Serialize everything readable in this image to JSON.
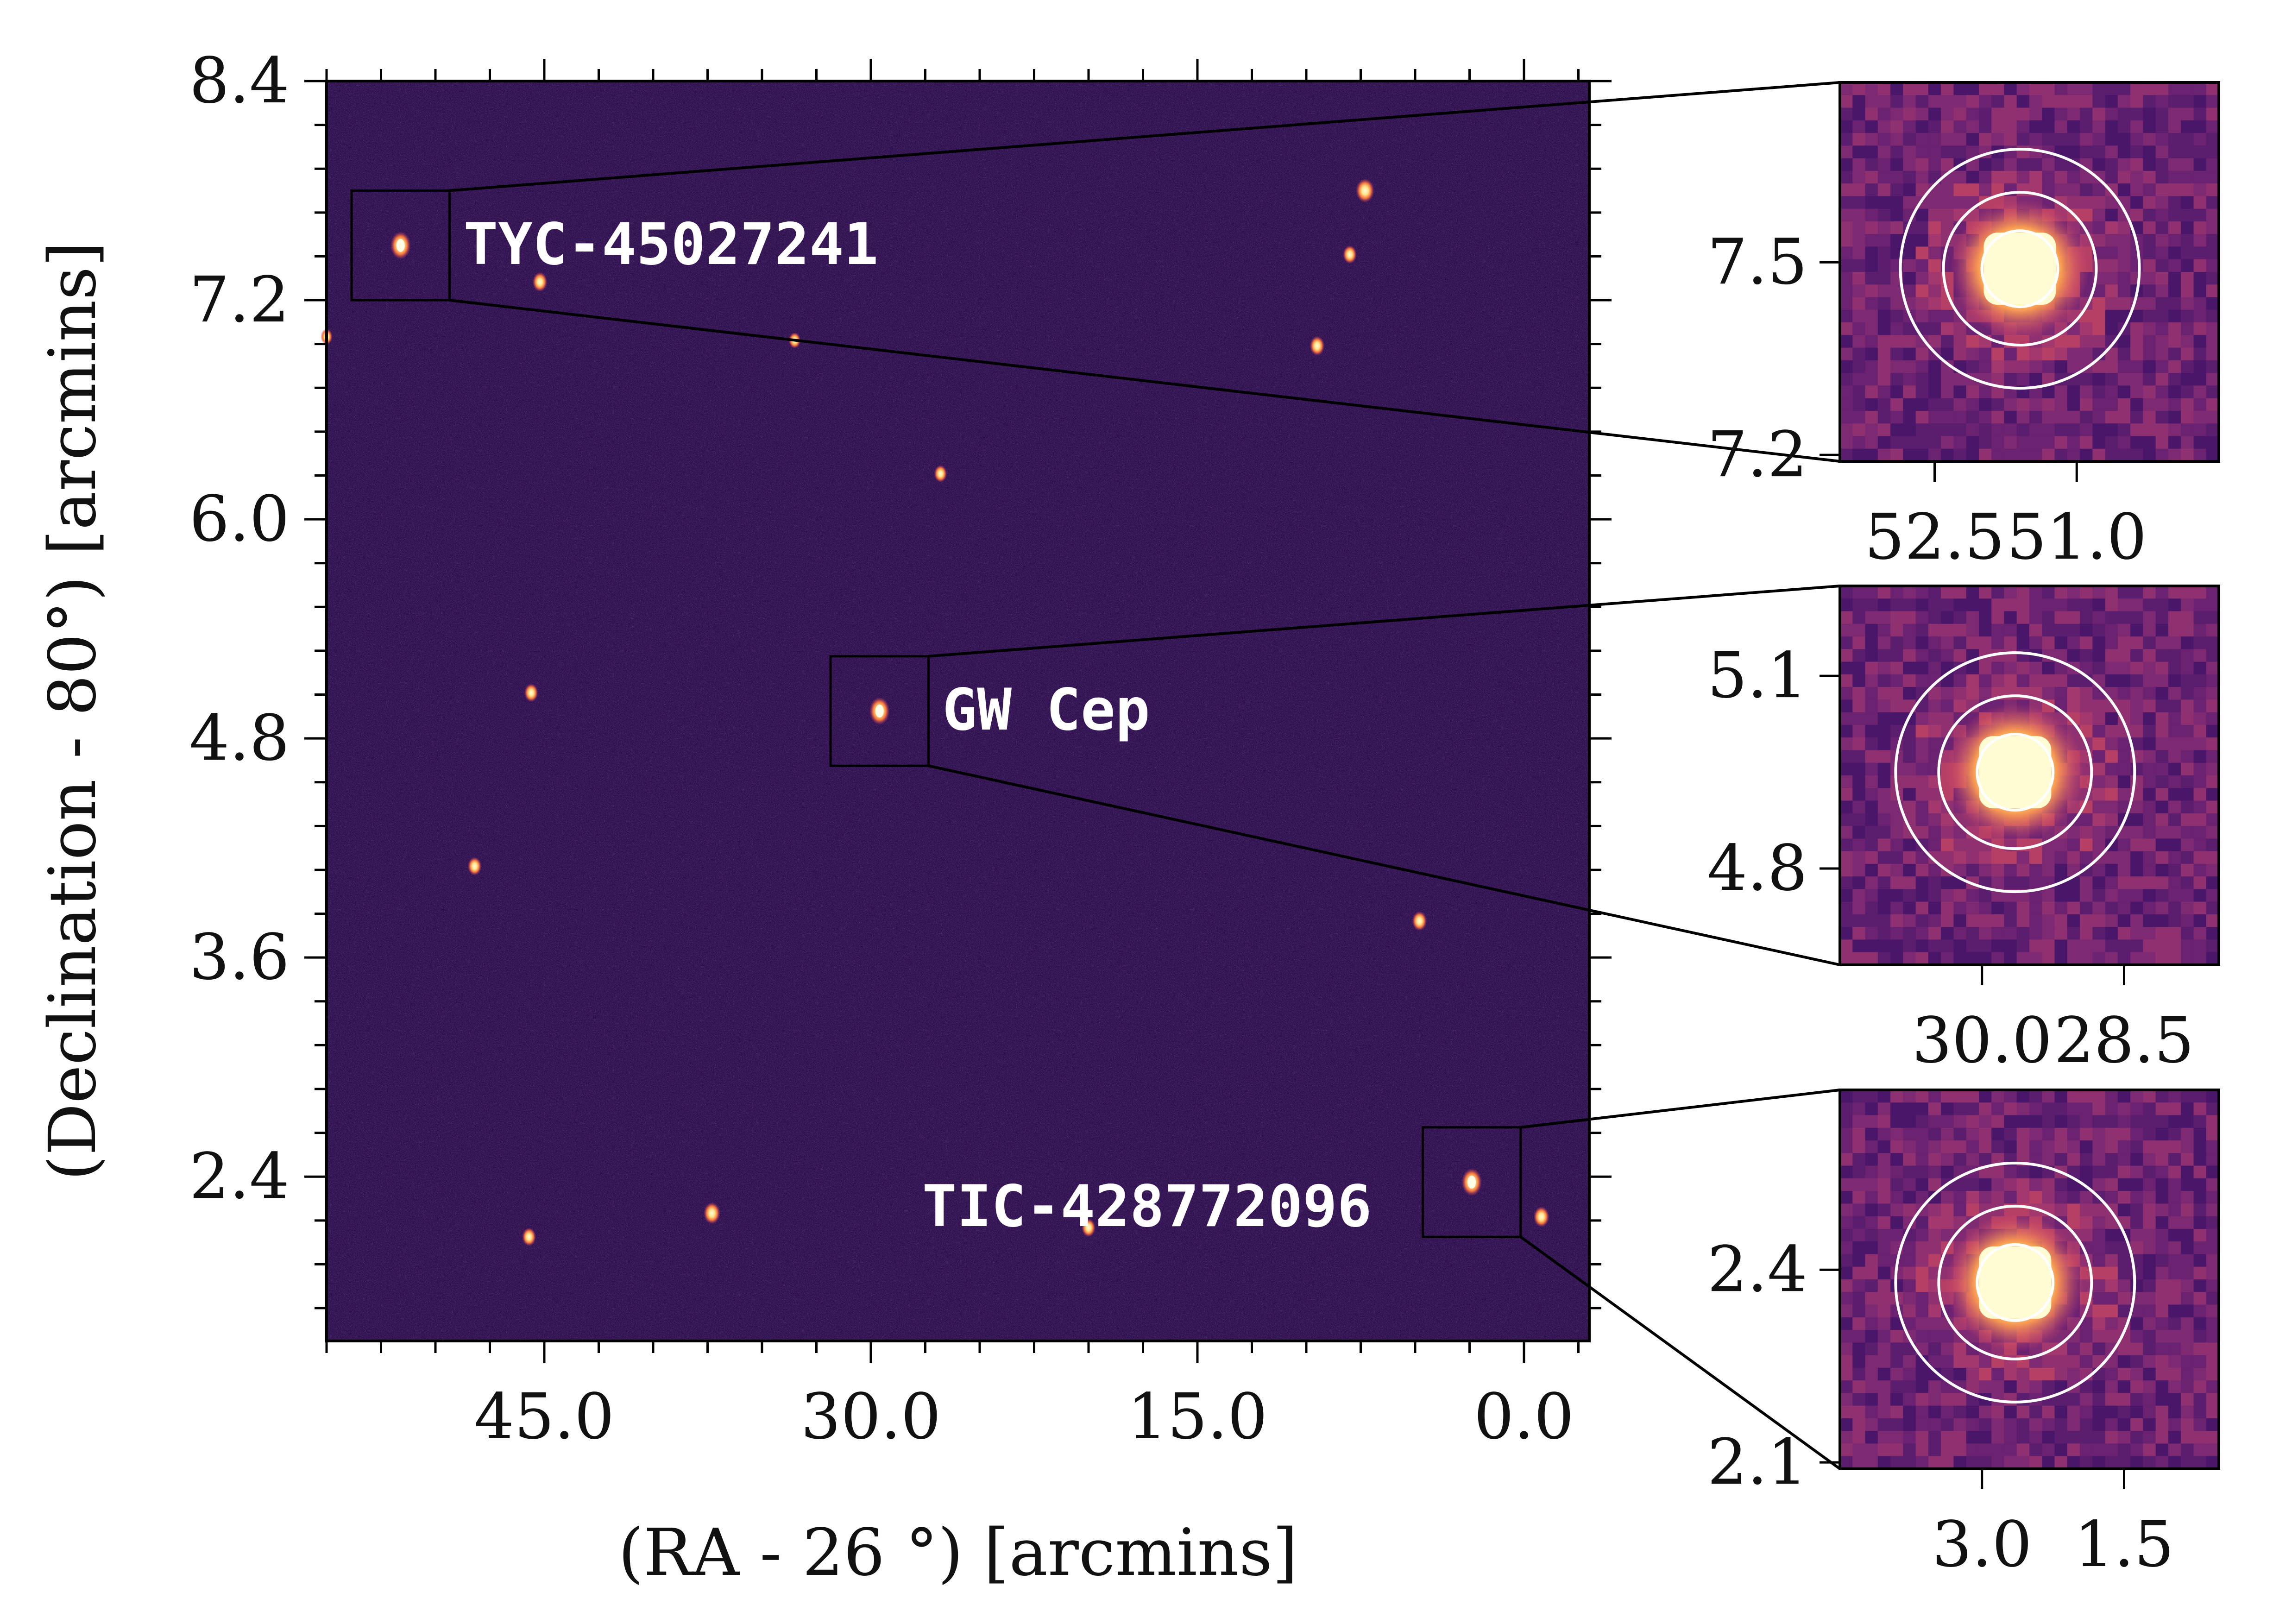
{
  "chart_data": [
    {
      "type": "scatter",
      "panel": "main-field",
      "xlabel": "(RA - 26 °) [arcmins]",
      "ylabel": "(Declination - 80°) [arcmins]",
      "xlim": [
        55,
        -3
      ],
      "ylim": [
        1.5,
        8.4
      ],
      "xticks": [
        45.0,
        30.0,
        15.0,
        0.0
      ],
      "xtick_labels": [
        "45.0",
        "30.0",
        "15.0",
        "0.0"
      ],
      "yticks": [
        8.4,
        7.2,
        6.0,
        4.8,
        3.6,
        2.4
      ],
      "ytick_labels": [
        "8.4",
        "7.2",
        "6.0",
        "4.8",
        "3.6",
        "2.4"
      ],
      "colormap": "magma",
      "background_color": "#2a0f4a",
      "grid": false,
      "targets": [
        {
          "name": "TYC-45027241",
          "x": 51.6,
          "y": 7.5
        },
        {
          "name": "GW Cep",
          "x": 29.6,
          "y": 4.95
        },
        {
          "name": "TIC-428772096",
          "x": 2.4,
          "y": 2.37
        }
      ],
      "sources": [
        {
          "x": 7.3,
          "y": 7.8,
          "bright": 1.0
        },
        {
          "x": 8.0,
          "y": 7.45,
          "bright": 0.5
        },
        {
          "x": 45.2,
          "y": 7.3,
          "bright": 0.6
        },
        {
          "x": 9.5,
          "y": 6.95,
          "bright": 0.6
        },
        {
          "x": 33.5,
          "y": 6.98,
          "bright": 0.3
        },
        {
          "x": 26.8,
          "y": 6.25,
          "bright": 0.4
        },
        {
          "x": 45.6,
          "y": 5.05,
          "bright": 0.5
        },
        {
          "x": 48.2,
          "y": 4.1,
          "bright": 0.5
        },
        {
          "x": 4.8,
          "y": 3.8,
          "bright": 0.6
        },
        {
          "x": 37.3,
          "y": 2.2,
          "bright": 0.8
        },
        {
          "x": 45.7,
          "y": 2.07,
          "bright": 0.5
        },
        {
          "x": 20.0,
          "y": 2.12,
          "bright": 0.5
        },
        {
          "x": -0.8,
          "y": 2.18,
          "bright": 0.7
        },
        {
          "x": 55.0,
          "y": 7.0,
          "bright": 0.3
        }
      ]
    },
    {
      "type": "scatter",
      "panel": "zoom-TYC-45027241",
      "target": "TYC-45027241",
      "xlim": [
        53.5,
        49.5
      ],
      "ylim": [
        7.19,
        7.78
      ],
      "xticks": [
        52.5,
        51.0
      ],
      "xtick_labels": [
        "52.5",
        "51.0"
      ],
      "yticks": [
        7.5,
        7.2
      ],
      "ytick_labels": [
        "7.5",
        "7.2"
      ],
      "star": {
        "x": 51.6,
        "y": 7.49
      },
      "aperture_radii_arcmin": [
        0.45,
        1.0,
        1.6
      ]
    },
    {
      "type": "scatter",
      "panel": "zoom-GW-Cep",
      "target": "GW Cep",
      "xlim": [
        31.5,
        27.5
      ],
      "ylim": [
        4.65,
        5.24
      ],
      "xticks": [
        30.0,
        28.5
      ],
      "xtick_labels": [
        "30.0",
        "28.5"
      ],
      "yticks": [
        5.1,
        4.8
      ],
      "ytick_labels": [
        "5.1",
        "4.8"
      ],
      "star": {
        "x": 29.65,
        "y": 4.95
      },
      "aperture_radii_arcmin": [
        0.45,
        1.0,
        1.6
      ]
    },
    {
      "type": "scatter",
      "panel": "zoom-TIC-428772096",
      "target": "TIC-428772096",
      "xlim": [
        4.5,
        0.5
      ],
      "ylim": [
        2.09,
        2.68
      ],
      "xticks": [
        3.0,
        1.5
      ],
      "xtick_labels": [
        "3.0",
        "1.5"
      ],
      "yticks": [
        2.4,
        2.1
      ],
      "ytick_labels": [
        "2.4",
        "2.1"
      ],
      "star": {
        "x": 2.65,
        "y": 2.38
      },
      "aperture_radii_arcmin": [
        0.45,
        1.0,
        1.6
      ]
    }
  ]
}
